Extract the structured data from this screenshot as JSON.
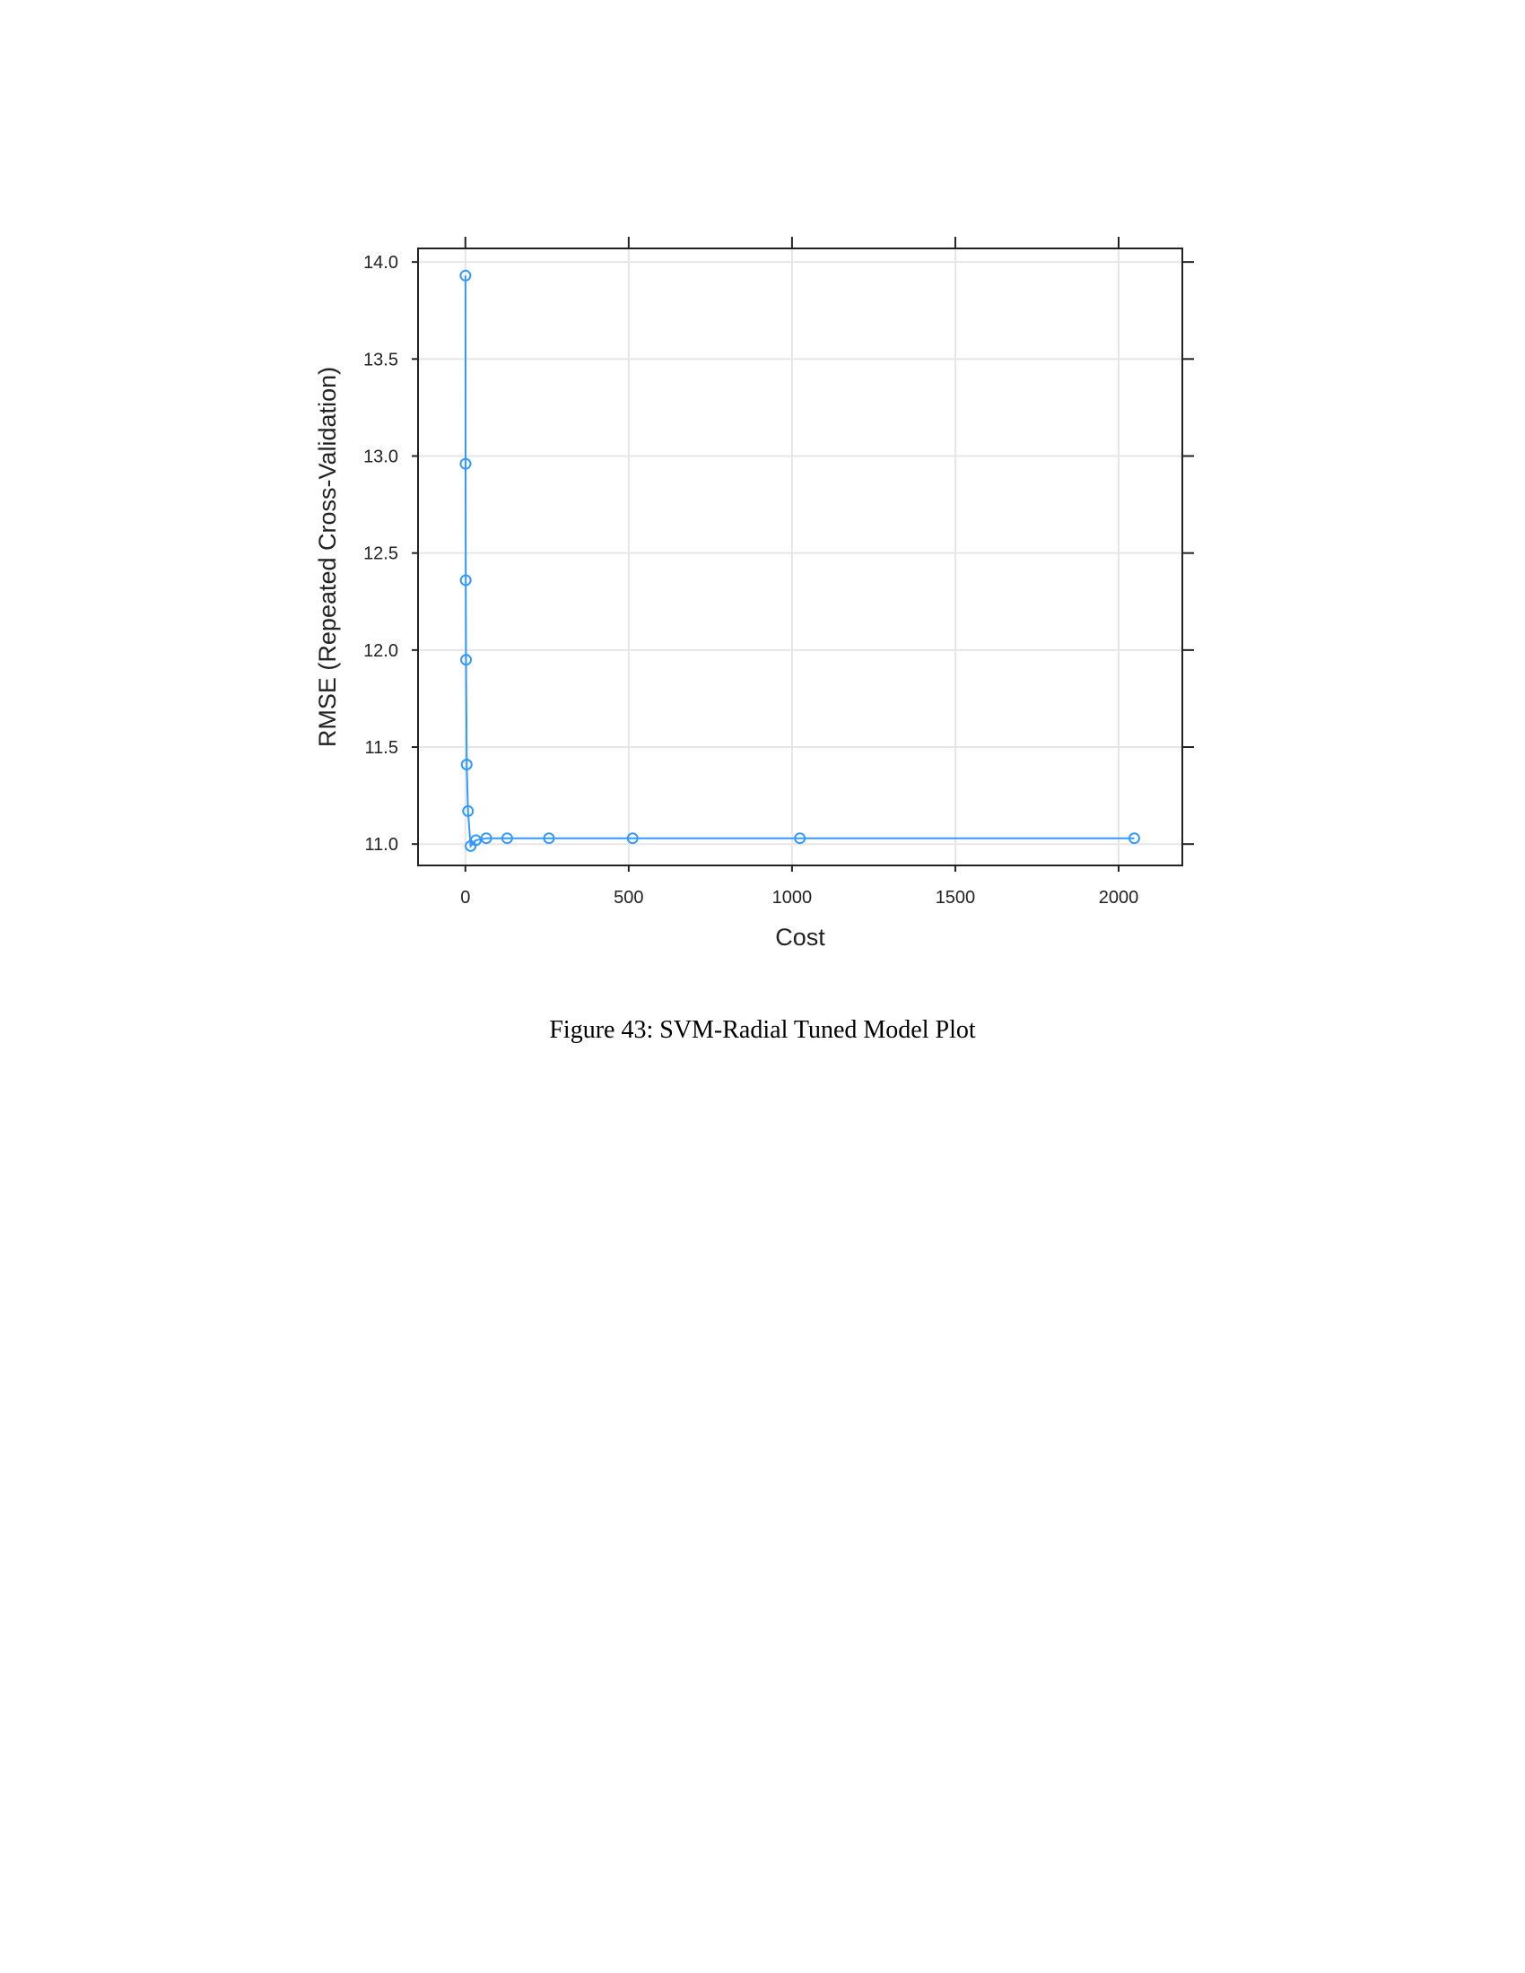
{
  "caption": "Figure 43: SVM-Radial Tuned Model Plot",
  "chart_data": {
    "type": "line",
    "xlabel": "Cost",
    "ylabel": "RMSE (Repeated Cross-Validation)",
    "xlim": [
      -145,
      2195
    ],
    "ylim": [
      10.89,
      14.07
    ],
    "x_ticks": [
      0,
      500,
      1000,
      1500,
      2000
    ],
    "x_tick_labels": [
      "0",
      "500",
      "1000",
      "1500",
      "2000"
    ],
    "y_ticks": [
      11.0,
      11.5,
      12.0,
      12.5,
      13.0,
      13.5,
      14.0
    ],
    "y_tick_labels": [
      "11.0",
      "11.5",
      "12.0",
      "12.5",
      "13.0",
      "13.5",
      "14.0"
    ],
    "grid": true,
    "color": "#3399ff",
    "marker": "open-circle",
    "series": [
      {
        "x": [
          0.25,
          0.5,
          1,
          2,
          4,
          8,
          16,
          32,
          64,
          128,
          256,
          512,
          1024,
          2048
        ],
        "values": [
          13.93,
          12.96,
          12.36,
          11.95,
          11.41,
          11.17,
          10.99,
          11.02,
          11.03,
          11.03,
          11.03,
          11.03,
          11.03,
          11.03
        ]
      }
    ]
  }
}
